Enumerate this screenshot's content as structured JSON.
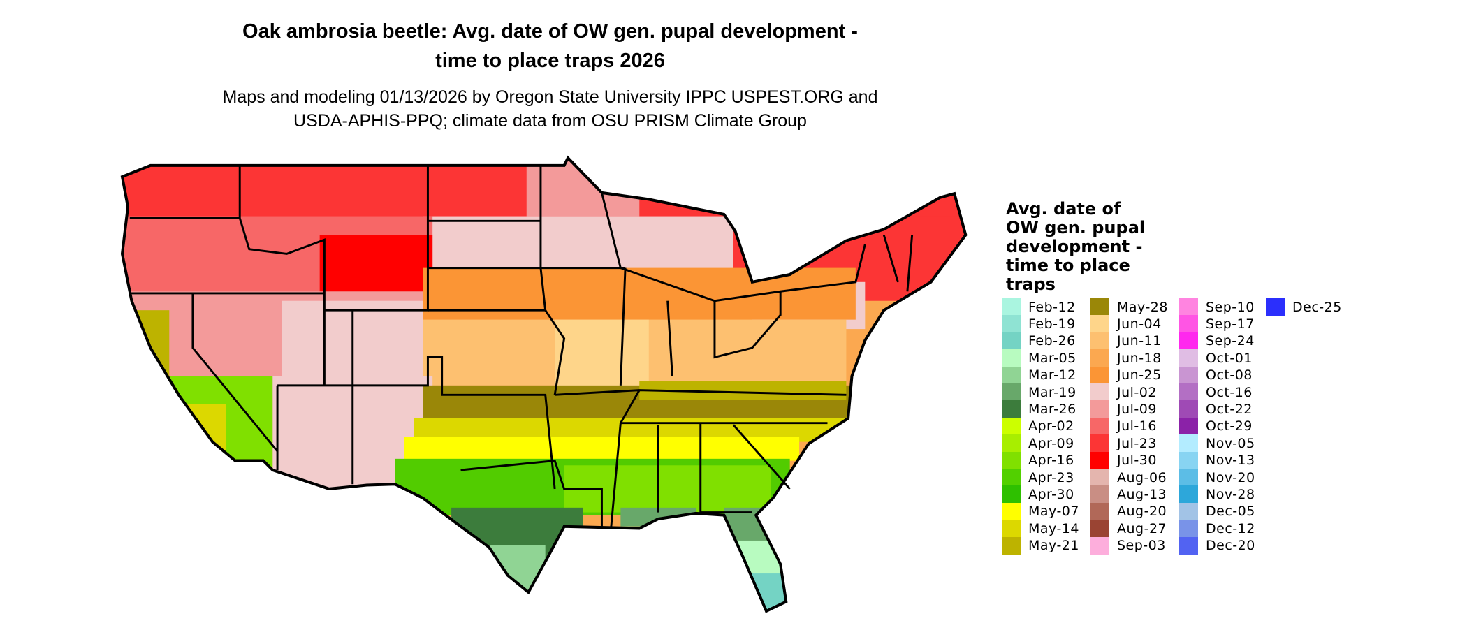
{
  "title": {
    "line1": "Oak ambrosia beetle: Avg. date of OW gen. pupal development -",
    "line2": "time to place traps 2026"
  },
  "subtitle": {
    "line1": "Maps and modeling 01/13/2026 by Oregon State University IPPC USPEST.ORG and",
    "line2": "USDA-APHIS-PPQ; climate data from OSU PRISM Climate Group"
  },
  "legend": {
    "title_lines": [
      "Avg. date of",
      "OW gen. pupal",
      "development -",
      "time to place",
      "traps"
    ],
    "items": [
      {
        "label": "Feb-12",
        "color": "#aaf5e0"
      },
      {
        "label": "Feb-19",
        "color": "#8fe3d3"
      },
      {
        "label": "Feb-26",
        "color": "#74d3c4"
      },
      {
        "label": "Mar-05",
        "color": "#b8fbc0"
      },
      {
        "label": "Mar-12",
        "color": "#90d494"
      },
      {
        "label": "Mar-19",
        "color": "#68a86a"
      },
      {
        "label": "Mar-26",
        "color": "#3c7c3c"
      },
      {
        "label": "Apr-02",
        "color": "#ccff00"
      },
      {
        "label": "Apr-09",
        "color": "#a8ee00"
      },
      {
        "label": "Apr-16",
        "color": "#80e000"
      },
      {
        "label": "Apr-23",
        "color": "#52d000"
      },
      {
        "label": "Apr-30",
        "color": "#2ec000"
      },
      {
        "label": "May-07",
        "color": "#ffff00"
      },
      {
        "label": "May-14",
        "color": "#dcd800"
      },
      {
        "label": "May-21",
        "color": "#bdb300"
      },
      {
        "label": "May-28",
        "color": "#9a8708"
      },
      {
        "label": "Jun-04",
        "color": "#fed58a"
      },
      {
        "label": "Jun-11",
        "color": "#fdc070"
      },
      {
        "label": "Jun-18",
        "color": "#fba850"
      },
      {
        "label": "Jun-25",
        "color": "#fb9535"
      },
      {
        "label": "Jul-02",
        "color": "#f2cccc"
      },
      {
        "label": "Jul-09",
        "color": "#f39a9a"
      },
      {
        "label": "Jul-16",
        "color": "#f76767"
      },
      {
        "label": "Jul-23",
        "color": "#fc3535"
      },
      {
        "label": "Jul-30",
        "color": "#ff0000"
      },
      {
        "label": "Aug-06",
        "color": "#e4b5ae"
      },
      {
        "label": "Aug-13",
        "color": "#c98e84"
      },
      {
        "label": "Aug-20",
        "color": "#b16858"
      },
      {
        "label": "Aug-27",
        "color": "#9a4433"
      },
      {
        "label": "Sep-03",
        "color": "#fdaedc"
      },
      {
        "label": "Sep-10",
        "color": "#ff84e0"
      },
      {
        "label": "Sep-17",
        "color": "#ff55e4"
      },
      {
        "label": "Sep-24",
        "color": "#ff28ee"
      },
      {
        "label": "Oct-01",
        "color": "#e0bde4"
      },
      {
        "label": "Oct-08",
        "color": "#c995d2"
      },
      {
        "label": "Oct-16",
        "color": "#b36fc4"
      },
      {
        "label": "Oct-22",
        "color": "#9f4ab5"
      },
      {
        "label": "Oct-29",
        "color": "#8b22a8"
      },
      {
        "label": "Nov-05",
        "color": "#b3ecff"
      },
      {
        "label": "Nov-13",
        "color": "#88d4f2"
      },
      {
        "label": "Nov-20",
        "color": "#5cbde6"
      },
      {
        "label": "Nov-28",
        "color": "#2da7da"
      },
      {
        "label": "Dec-05",
        "color": "#a2c3e6"
      },
      {
        "label": "Dec-12",
        "color": "#7993e8"
      },
      {
        "label": "Dec-20",
        "color": "#5263f2"
      },
      {
        "label": "Dec-25",
        "color": "#2b2ffc"
      }
    ]
  }
}
